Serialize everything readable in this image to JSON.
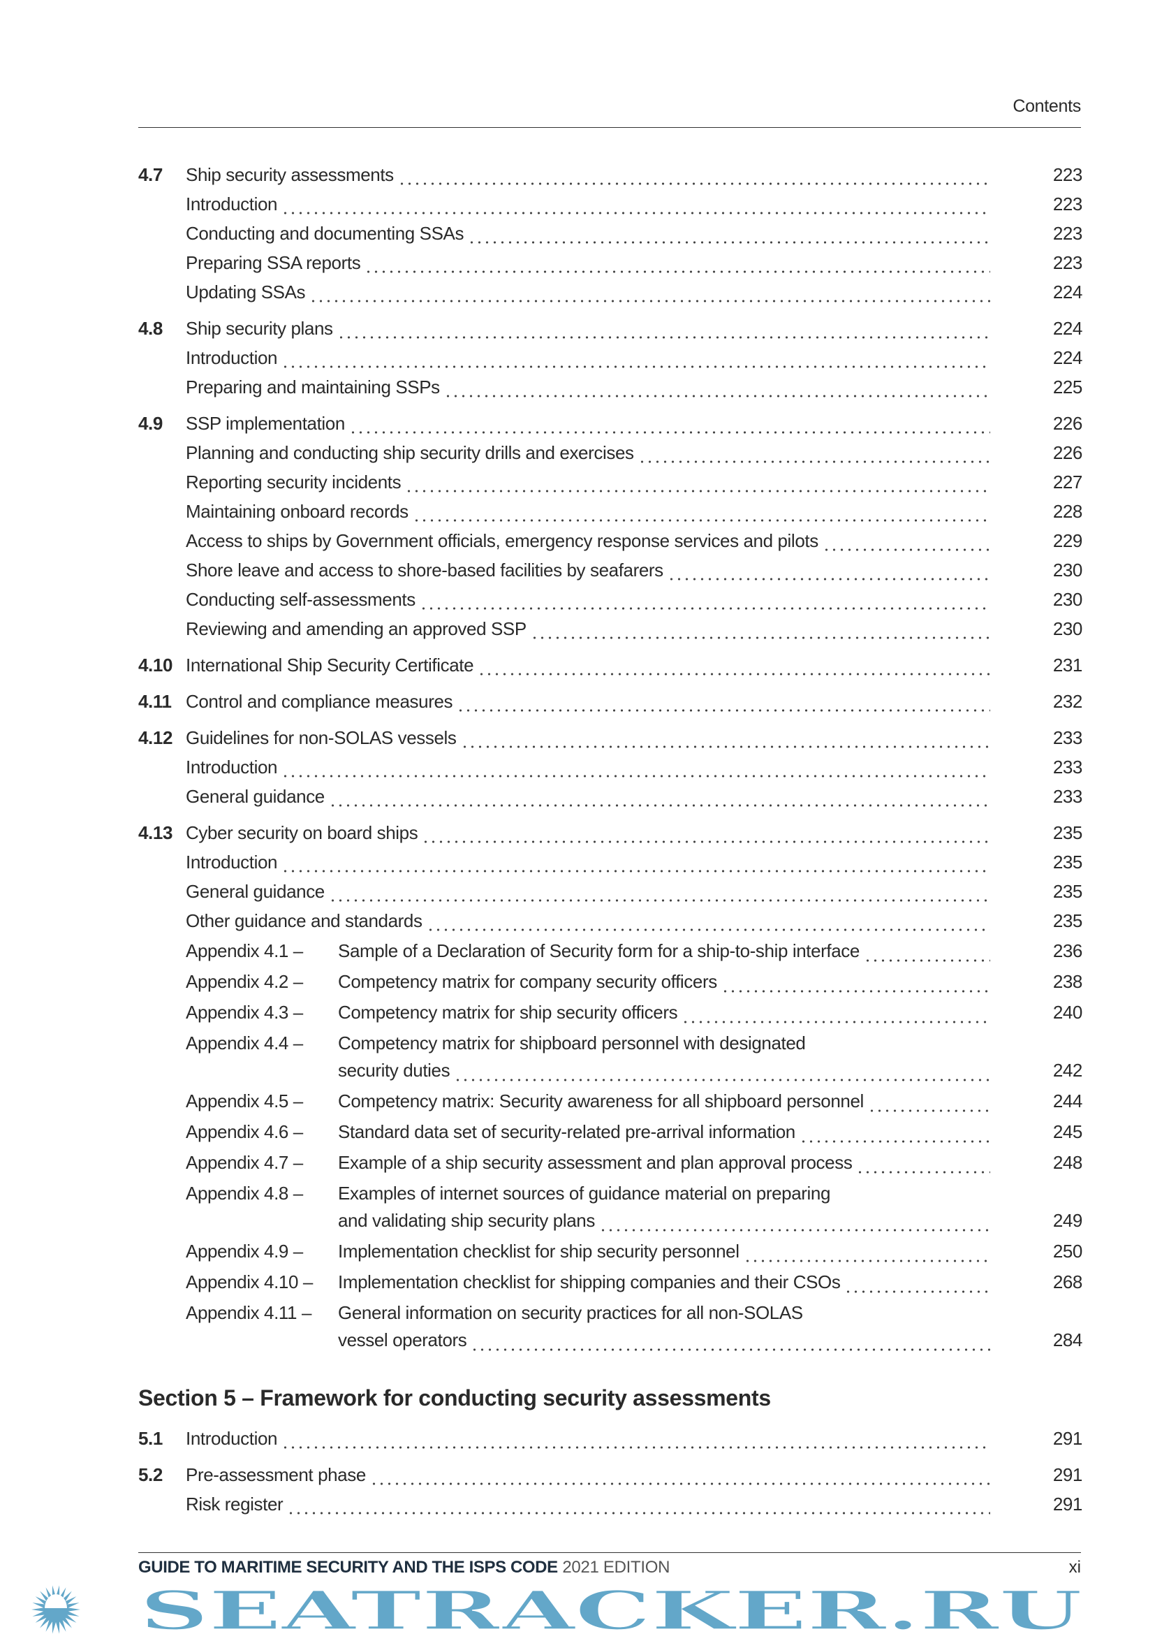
{
  "header": {
    "title": "Contents"
  },
  "groups": [
    {
      "num": "4.7",
      "entries": [
        {
          "text": "Ship security assessments",
          "page": "223"
        },
        {
          "text": "Introduction",
          "page": "223"
        },
        {
          "text": "Conducting and documenting SSAs",
          "page": "223"
        },
        {
          "text": "Preparing SSA reports",
          "page": "223"
        },
        {
          "text": "Updating SSAs",
          "page": "224"
        }
      ]
    },
    {
      "num": "4.8",
      "entries": [
        {
          "text": "Ship security plans",
          "page": "224"
        },
        {
          "text": "Introduction",
          "page": "224"
        },
        {
          "text": "Preparing and maintaining SSPs",
          "page": "225"
        }
      ]
    },
    {
      "num": "4.9",
      "entries": [
        {
          "text": "SSP implementation",
          "page": "226"
        },
        {
          "text": "Planning and conducting ship security drills and exercises",
          "page": "226"
        },
        {
          "text": "Reporting security incidents",
          "page": "227"
        },
        {
          "text": "Maintaining onboard records",
          "page": "228"
        },
        {
          "text": "Access to ships by Government officials, emergency response services and pilots",
          "page": "229"
        },
        {
          "text": "Shore leave and access to shore-based facilities by seafarers",
          "page": "230"
        },
        {
          "text": "Conducting self-assessments",
          "page": "230"
        },
        {
          "text": "Reviewing and amending an approved SSP",
          "page": "230"
        }
      ]
    },
    {
      "num": "4.10",
      "entries": [
        {
          "text": "International Ship Security Certificate",
          "page": "231"
        }
      ]
    },
    {
      "num": "4.11",
      "entries": [
        {
          "text": "Control and compliance measures",
          "page": "232"
        }
      ]
    },
    {
      "num": "4.12",
      "entries": [
        {
          "text": "Guidelines for non-SOLAS vessels",
          "page": "233"
        },
        {
          "text": "Introduction",
          "page": "233"
        },
        {
          "text": "General guidance",
          "page": "233"
        }
      ]
    },
    {
      "num": "4.13",
      "entries": [
        {
          "text": "Cyber security on board ships",
          "page": "235"
        },
        {
          "text": "Introduction",
          "page": "235"
        },
        {
          "text": "General guidance",
          "page": "235"
        },
        {
          "text": "Other guidance and standards",
          "page": "235"
        }
      ]
    }
  ],
  "appendices": [
    {
      "label": "Appendix 4.1 –",
      "line1": "",
      "line2": "Sample of a Declaration of Security form for a ship-to-ship interface",
      "page": "236"
    },
    {
      "label": "Appendix 4.2 –",
      "line1": "",
      "line2": "Competency matrix for company security officers",
      "page": "238"
    },
    {
      "label": "Appendix 4.3 –",
      "line1": "",
      "line2": "Competency matrix for ship security officers",
      "page": "240"
    },
    {
      "label": "Appendix 4.4 –",
      "line1": "Competency matrix for shipboard personnel with designated",
      "line2": "security duties",
      "page": "242"
    },
    {
      "label": "Appendix 4.5 –",
      "line1": "",
      "line2": "Competency matrix: Security awareness for all shipboard personnel",
      "page": "244"
    },
    {
      "label": "Appendix 4.6 –",
      "line1": "",
      "line2": "Standard data set of security-related pre-arrival information",
      "page": "245"
    },
    {
      "label": "Appendix 4.7 –",
      "line1": "",
      "line2": "Example of a ship security assessment and plan approval process",
      "page": "248"
    },
    {
      "label": "Appendix 4.8 –",
      "line1": "Examples of internet sources of guidance material on preparing",
      "line2": "and validating ship security plans",
      "page": "249"
    },
    {
      "label": "Appendix 4.9 –",
      "line1": "",
      "line2": "Implementation checklist for ship security personnel",
      "page": "250"
    },
    {
      "label": "Appendix 4.10 –",
      "line1": "",
      "line2": "Implementation checklist for shipping companies and their CSOs",
      "page": "268"
    },
    {
      "label": "Appendix 4.11 –",
      "line1": "General information on security practices for all non-SOLAS",
      "line2": "vessel operators",
      "page": "284"
    }
  ],
  "section5": {
    "title": "Section 5 – Framework for conducting security assessments",
    "groups": [
      {
        "num": "5.1",
        "entries": [
          {
            "text": "Introduction",
            "page": "291"
          }
        ]
      },
      {
        "num": "5.2",
        "entries": [
          {
            "text": "Pre-assessment phase",
            "page": "291"
          },
          {
            "text": "Risk register",
            "page": "291"
          }
        ]
      }
    ]
  },
  "footer": {
    "title": "GUIDE TO MARITIME SECURITY AND THE ISPS CODE",
    "edition": "2021 EDITION",
    "page": "xi"
  },
  "watermark": {
    "text": "SEATRACKER.RU",
    "color": "#63a7c9"
  }
}
